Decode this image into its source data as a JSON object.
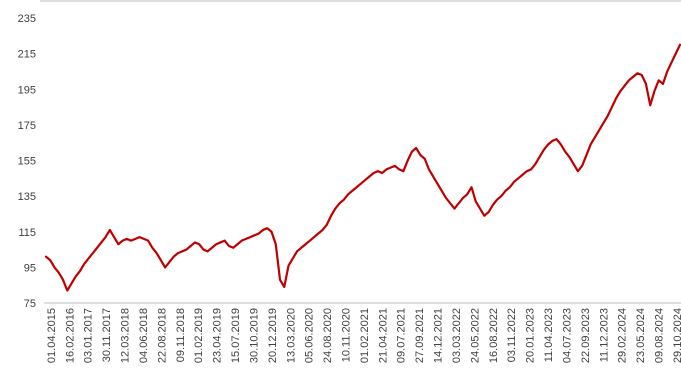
{
  "chart_data": {
    "type": "line",
    "title": "",
    "xlabel": "",
    "ylabel": "",
    "ylim": [
      75,
      235
    ],
    "yticks": [
      75,
      95,
      115,
      135,
      155,
      175,
      195,
      215,
      235
    ],
    "grid": false,
    "legend": "none",
    "line_color": "#c00000",
    "axis_color": "#bfbfbf",
    "x_tick_labels": [
      "01.04.2015",
      "16.02.2016",
      "03.01.2017",
      "30.11.2017",
      "12.03.2018",
      "04.06.2018",
      "22.08.2018",
      "09.11.2018",
      "01.02.2019",
      "23.04.2019",
      "15.07.2019",
      "30.10.2019",
      "20.12.2019",
      "13.03.2020",
      "05.06.2020",
      "24.08.2020",
      "10.11.2020",
      "01.02.2021",
      "21.04.2021",
      "09.07.2021",
      "27.09.2021",
      "14.12.2021",
      "03.03.2022",
      "24.05.2022",
      "16.08.2022",
      "03.11.2022",
      "20.01.2023",
      "11.04.2023",
      "04.07.2023",
      "22.09.2023",
      "11.12.2023",
      "29.02.2024",
      "23.05.2024",
      "09.08.2024",
      "29.10.2024"
    ],
    "series": [
      {
        "values": [
          101,
          99,
          95,
          92,
          88,
          82,
          86,
          90,
          93,
          97,
          100,
          103,
          106,
          109,
          112,
          116,
          112,
          108,
          110,
          111,
          110,
          111,
          112,
          111,
          110,
          106,
          103,
          99,
          95,
          98,
          101,
          103,
          104,
          105,
          107,
          109,
          108,
          105,
          104,
          106,
          108,
          109,
          110,
          107,
          106,
          108,
          110,
          111,
          112,
          113,
          114,
          116,
          117,
          115,
          108,
          88,
          84,
          96,
          100,
          104,
          106,
          108,
          110,
          112,
          114,
          116,
          119,
          124,
          128,
          131,
          133,
          136,
          138,
          140,
          142,
          144,
          146,
          148,
          149,
          148,
          150,
          151,
          152,
          150,
          149,
          155,
          160,
          162,
          158,
          156,
          150,
          146,
          142,
          138,
          134,
          131,
          128,
          131,
          134,
          136,
          140,
          132,
          128,
          124,
          126,
          130,
          133,
          135,
          138,
          140,
          143,
          145,
          147,
          149,
          150,
          153,
          157,
          161,
          164,
          166,
          167,
          164,
          160,
          157,
          153,
          149,
          152,
          158,
          164,
          168,
          172,
          176,
          180,
          185,
          190,
          194,
          197,
          200,
          202,
          204,
          203,
          198,
          186,
          194,
          200,
          198,
          205,
          210,
          215,
          220
        ]
      }
    ]
  }
}
